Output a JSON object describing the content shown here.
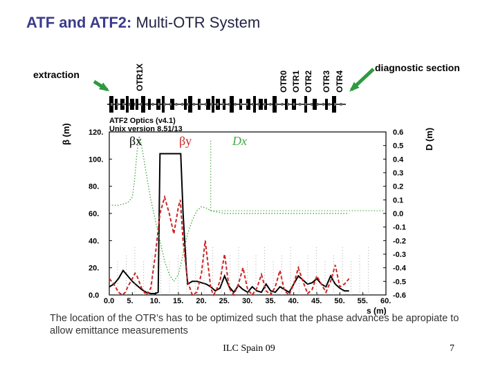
{
  "slide": {
    "title_bold": "ATF and ATF2:",
    "title_rest": " Multi-OTR System",
    "extraction": "extraction",
    "diagnostic": "diagnostic section",
    "otr_labels": [
      "OTR1X",
      "OTR0",
      "OTR1",
      "OTR2",
      "OTR3",
      "OTR4"
    ],
    "caption": "The location of the OTR’s has to be optimized such that the phase advances be apropiate to allow emittance measurements",
    "footer_center": "ILC Spain 09",
    "footer_page": "7",
    "arrow_color": "#2e9a3e"
  },
  "chart_data": {
    "type": "line",
    "title": "ATF2 Optics (v4.1)",
    "subtitle": "Unix version 8.51/13",
    "xlabel": "s (m)",
    "ylabel_left": "β (m)",
    "ylabel_right": "D (m)",
    "xlim": [
      0.0,
      60.0
    ],
    "ylim_left": [
      0.0,
      120.0
    ],
    "ylim_right": [
      -0.6,
      0.6
    ],
    "x_ticks": [
      "0.0",
      "5.",
      "10.",
      "15.",
      "20.",
      "25.",
      "30.",
      "35.",
      "40.",
      "45.",
      "50.",
      "55.",
      "60."
    ],
    "y_ticks_left": [
      "0.0",
      "20.",
      "40.",
      "60.",
      "80.",
      "100.",
      "120."
    ],
    "y_ticks_right": [
      "-0.6",
      "-0.5",
      "-0.4",
      "-0.3",
      "-0.2",
      "-0.1",
      "0.0",
      "0.1",
      "0.2",
      "0.3",
      "0.4",
      "0.5",
      "0.6"
    ],
    "legend": [
      "βx",
      "βy",
      "Dx"
    ],
    "grid": false,
    "series": [
      {
        "name": "βx",
        "color": "#000000",
        "style": "solid",
        "x": [
          0,
          1,
          2,
          3,
          4,
          5,
          6,
          7,
          8,
          9,
          10,
          10.6,
          11,
          12,
          13,
          14,
          15,
          15.5,
          16,
          16.7,
          17,
          18,
          19,
          20,
          21,
          22,
          23,
          24,
          25,
          26,
          27,
          28,
          29,
          30,
          31,
          32,
          33,
          34,
          35,
          36,
          37,
          38,
          39,
          40,
          41,
          42,
          43,
          44,
          45,
          46,
          47,
          48,
          49,
          50,
          51,
          52
        ],
        "y": [
          6,
          8,
          12,
          18,
          14,
          10,
          7,
          4,
          2,
          1,
          1,
          2,
          104,
          104,
          104,
          104,
          104,
          104,
          60,
          20,
          8,
          10,
          10,
          9,
          8,
          6,
          3,
          5,
          14,
          6,
          2,
          7,
          4,
          2,
          6,
          3,
          2,
          8,
          3,
          2,
          6,
          4,
          2,
          8,
          14,
          11,
          8,
          9,
          12,
          8,
          6,
          14,
          8,
          5,
          3,
          3
        ]
      },
      {
        "name": "βy",
        "color": "#cc2222",
        "style": "dashed",
        "x": [
          0,
          1,
          2,
          2.8,
          3.5,
          4,
          5,
          5.6,
          6,
          7,
          8,
          9,
          10,
          11,
          12,
          13,
          14,
          15,
          15.4,
          16,
          17,
          18,
          19,
          20,
          20.8,
          21.5,
          22,
          22.6,
          23,
          24,
          25,
          26,
          27,
          28,
          29,
          30,
          31,
          32,
          33,
          34,
          35,
          36,
          37,
          38,
          39,
          40,
          41,
          42,
          43,
          44,
          45,
          46,
          47,
          48,
          49,
          50,
          51,
          52
        ],
        "y": [
          12,
          8,
          2,
          0,
          2,
          6,
          12,
          16,
          14,
          5,
          0,
          5,
          30,
          60,
          72,
          60,
          45,
          65,
          70,
          40,
          10,
          0,
          2,
          16,
          40,
          20,
          5,
          0,
          2,
          10,
          30,
          5,
          0,
          8,
          20,
          4,
          0,
          5,
          15,
          3,
          0,
          6,
          18,
          3,
          0,
          8,
          20,
          10,
          1,
          4,
          14,
          8,
          2,
          10,
          22,
          6,
          8,
          12
        ]
      },
      {
        "name": "Dx",
        "color": "#44aa44",
        "style": "dotted",
        "x": [
          0,
          1,
          2,
          3,
          4,
          5,
          5.5,
          6,
          6.5,
          7,
          8,
          9,
          10,
          11,
          12,
          13,
          14,
          15,
          16,
          17,
          18,
          19,
          20,
          21,
          22,
          25,
          30,
          35,
          40,
          45,
          50,
          52
        ],
        "y": [
          0.06,
          0.06,
          0.06,
          0.07,
          0.08,
          0.12,
          0.25,
          0.45,
          0.57,
          0.5,
          0.3,
          0.1,
          -0.05,
          -0.2,
          -0.35,
          -0.45,
          -0.5,
          -0.45,
          -0.3,
          -0.15,
          -0.05,
          0.02,
          0.05,
          0.04,
          0.02,
          0.0,
          0.0,
          0.0,
          0.0,
          0.0,
          0.0,
          0.0
        ]
      }
    ],
    "annotations": [
      {
        "text": "",
        "note": "vertical line at s≈22 rising to Dx≈0.2, horizontal reference at Dx≈0.0 from s=22 to 60"
      }
    ]
  }
}
